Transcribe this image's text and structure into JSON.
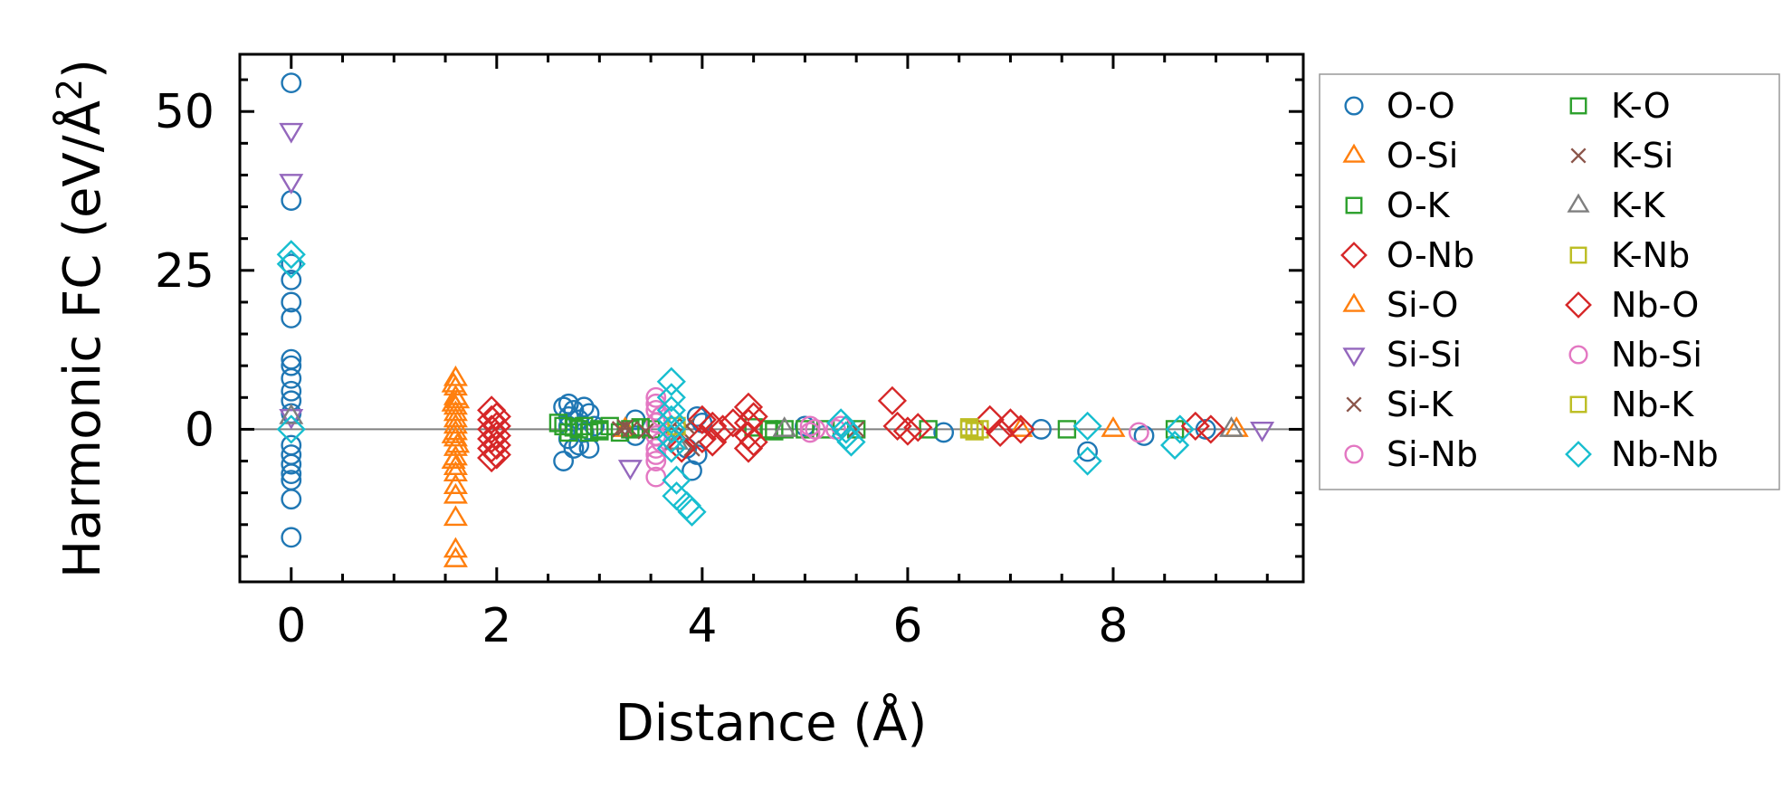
{
  "chart_data": {
    "type": "scatter",
    "title": "",
    "xlabel": "Distance (Å)",
    "ylabel": "Harmonic FC (eV/Å²)",
    "ylabel_parts": {
      "main": "Harmonic FC (eV/Å",
      "sup": "2",
      "close": ")"
    },
    "xlim": [
      -0.5,
      9.85
    ],
    "ylim": [
      -24,
      59
    ],
    "x_ticks": [
      0,
      2,
      4,
      6,
      8
    ],
    "y_ticks": [
      0,
      25,
      50
    ],
    "x_tick_labels": [
      "0",
      "2",
      "4",
      "6",
      "8"
    ],
    "y_tick_labels": [
      "0",
      "25",
      "50"
    ],
    "x_minor_step": 0.5,
    "y_minor_step": 5,
    "zero_line": true,
    "legend_position": "outside-right",
    "legend": [
      {
        "label": "O-O",
        "color": "#1f77b4",
        "marker": "circle"
      },
      {
        "label": "O-Si",
        "color": "#ff7f0e",
        "marker": "triangle-up"
      },
      {
        "label": "O-K",
        "color": "#2ca02c",
        "marker": "square"
      },
      {
        "label": "O-Nb",
        "color": "#d62728",
        "marker": "diamond"
      },
      {
        "label": "Si-O",
        "color": "#ff7f0e",
        "marker": "triangle-up"
      },
      {
        "label": "Si-Si",
        "color": "#9467bd",
        "marker": "triangle-down"
      },
      {
        "label": "Si-K",
        "color": "#8c564b",
        "marker": "x"
      },
      {
        "label": "Si-Nb",
        "color": "#e377c2",
        "marker": "circle"
      },
      {
        "label": "K-O",
        "color": "#2ca02c",
        "marker": "square"
      },
      {
        "label": "K-Si",
        "color": "#8c564b",
        "marker": "x"
      },
      {
        "label": "K-K",
        "color": "#7f7f7f",
        "marker": "triangle-up"
      },
      {
        "label": "K-Nb",
        "color": "#bcbd22",
        "marker": "square"
      },
      {
        "label": "Nb-O",
        "color": "#d62728",
        "marker": "diamond"
      },
      {
        "label": "Nb-Si",
        "color": "#e377c2",
        "marker": "circle"
      },
      {
        "label": "Nb-K",
        "color": "#bcbd22",
        "marker": "square"
      },
      {
        "label": "Nb-Nb",
        "color": "#17becf",
        "marker": "diamond"
      }
    ],
    "series": [
      {
        "name": "O-O",
        "color": "#1f77b4",
        "marker": "circle",
        "points": [
          [
            0,
            54.5
          ],
          [
            0,
            36
          ],
          [
            0,
            26
          ],
          [
            0,
            23.5
          ],
          [
            0,
            20
          ],
          [
            0,
            17.5
          ],
          [
            0,
            11
          ],
          [
            0,
            10
          ],
          [
            0,
            8
          ],
          [
            0,
            6
          ],
          [
            0,
            4.5
          ],
          [
            0,
            2.5
          ],
          [
            0,
            -2.5
          ],
          [
            0,
            -4
          ],
          [
            0,
            -5.5
          ],
          [
            0,
            -7
          ],
          [
            0,
            -8
          ],
          [
            0,
            -11
          ],
          [
            0,
            -17
          ],
          [
            2.65,
            3.5
          ],
          [
            2.65,
            -5
          ],
          [
            2.7,
            4
          ],
          [
            2.7,
            2
          ],
          [
            2.7,
            0.5
          ],
          [
            2.7,
            -1.5
          ],
          [
            2.75,
            3
          ],
          [
            2.75,
            -3
          ],
          [
            2.8,
            1.5
          ],
          [
            2.8,
            -2.5
          ],
          [
            2.85,
            3.5
          ],
          [
            2.85,
            -0.5
          ],
          [
            2.9,
            2.5
          ],
          [
            2.9,
            -3
          ],
          [
            2.95,
            0.5
          ],
          [
            3.35,
            1.5
          ],
          [
            3.35,
            -1
          ],
          [
            3.85,
            -3
          ],
          [
            3.9,
            -6.5
          ],
          [
            3.95,
            2
          ],
          [
            3.95,
            -4
          ],
          [
            4.0,
            1
          ],
          [
            5.0,
            0.5
          ],
          [
            6.35,
            -0.5
          ],
          [
            7.3,
            0
          ],
          [
            7.75,
            -3.5
          ],
          [
            8.3,
            -1
          ],
          [
            8.9,
            0
          ]
        ]
      },
      {
        "name": "O-Si",
        "color": "#ff7f0e",
        "marker": "triangle-up",
        "points": [
          [
            1.6,
            8
          ],
          [
            1.6,
            6.5
          ],
          [
            1.6,
            5
          ],
          [
            1.6,
            3.5
          ],
          [
            1.6,
            2.5
          ],
          [
            1.6,
            1.5
          ],
          [
            1.6,
            0.5
          ],
          [
            1.6,
            -0.5
          ],
          [
            1.6,
            -1.5
          ],
          [
            1.6,
            -3
          ],
          [
            1.6,
            -4.5
          ],
          [
            1.6,
            -6
          ],
          [
            1.6,
            -7
          ],
          [
            1.6,
            -9
          ],
          [
            1.6,
            -10.5
          ],
          [
            1.6,
            -14
          ],
          [
            1.6,
            -19
          ],
          [
            1.6,
            -20.5
          ],
          [
            1.62,
            4.5
          ],
          [
            1.62,
            -2.5
          ],
          [
            3.25,
            0
          ],
          [
            7.1,
            0
          ],
          [
            8.0,
            0
          ],
          [
            9.2,
            0
          ]
        ]
      },
      {
        "name": "O-K",
        "color": "#2ca02c",
        "marker": "square",
        "points": [
          [
            2.6,
            1
          ],
          [
            2.65,
            0.5
          ],
          [
            2.7,
            -0.5
          ],
          [
            2.8,
            0
          ],
          [
            2.85,
            0.5
          ],
          [
            2.9,
            -0.5
          ],
          [
            3.0,
            0
          ],
          [
            3.1,
            0.5
          ],
          [
            3.2,
            -0.5
          ],
          [
            3.3,
            0
          ],
          [
            3.5,
            0
          ],
          [
            4.5,
            0.3
          ],
          [
            4.65,
            0
          ],
          [
            4.8,
            0
          ],
          [
            5.0,
            0
          ],
          [
            5.2,
            0
          ],
          [
            5.5,
            0
          ],
          [
            7.55,
            0
          ]
        ]
      },
      {
        "name": "O-Nb",
        "color": "#d62728",
        "marker": "diamond",
        "points": [
          [
            1.95,
            3
          ],
          [
            1.95,
            1.5
          ],
          [
            1.95,
            0
          ],
          [
            1.95,
            -1.5
          ],
          [
            1.95,
            -3
          ],
          [
            1.95,
            -4.5
          ],
          [
            2.0,
            2
          ],
          [
            2.0,
            0.5
          ],
          [
            2.0,
            -1
          ],
          [
            2.0,
            -2.5
          ],
          [
            2.0,
            -4
          ],
          [
            4.0,
            1.5
          ],
          [
            4.0,
            -1.5
          ],
          [
            4.1,
            0.5
          ],
          [
            4.1,
            -2
          ],
          [
            4.45,
            3.5
          ],
          [
            4.45,
            1
          ],
          [
            4.45,
            -1
          ],
          [
            4.45,
            -3
          ],
          [
            4.5,
            2
          ],
          [
            4.5,
            -2
          ]
        ]
      },
      {
        "name": "Si-O",
        "color": "#ff7f0e",
        "marker": "triangle-up",
        "points": [
          [
            1.58,
            7
          ],
          [
            1.58,
            4
          ],
          [
            1.58,
            -1
          ],
          [
            1.58,
            -5
          ]
        ]
      },
      {
        "name": "Si-Si",
        "color": "#9467bd",
        "marker": "triangle-down",
        "points": [
          [
            0,
            47
          ],
          [
            0,
            39
          ],
          [
            0,
            2
          ],
          [
            3.3,
            -6
          ],
          [
            9.45,
            0
          ]
        ]
      },
      {
        "name": "Si-K",
        "color": "#8c564b",
        "marker": "x",
        "points": [
          [
            3.2,
            0
          ],
          [
            3.3,
            0
          ],
          [
            3.7,
            0.3
          ],
          [
            3.8,
            -0.3
          ],
          [
            5.5,
            0
          ]
        ]
      },
      {
        "name": "Si-Nb",
        "color": "#e377c2",
        "marker": "circle",
        "points": [
          [
            3.55,
            5
          ],
          [
            3.55,
            3
          ],
          [
            3.55,
            1
          ],
          [
            3.55,
            -1
          ],
          [
            3.55,
            -3
          ],
          [
            3.55,
            -5
          ],
          [
            3.55,
            -7.5
          ],
          [
            3.6,
            2
          ],
          [
            3.6,
            -2
          ],
          [
            5.05,
            0.5
          ],
          [
            5.05,
            -0.5
          ],
          [
            5.3,
            0
          ],
          [
            8.25,
            -0.5
          ]
        ]
      },
      {
        "name": "K-O",
        "color": "#2ca02c",
        "marker": "square",
        "points": [
          [
            2.75,
            0.3
          ],
          [
            3.0,
            -0.3
          ],
          [
            3.4,
            0.3
          ],
          [
            4.7,
            -0.3
          ],
          [
            6.2,
            0
          ],
          [
            8.6,
            0
          ]
        ]
      },
      {
        "name": "K-Si",
        "color": "#8c564b",
        "marker": "x",
        "points": [
          [
            3.25,
            0.3
          ],
          [
            3.45,
            -0.3
          ],
          [
            3.85,
            0.5
          ],
          [
            3.9,
            -3
          ]
        ]
      },
      {
        "name": "K-K",
        "color": "#7f7f7f",
        "marker": "triangle-up",
        "points": [
          [
            0,
            2
          ],
          [
            3.75,
            -2
          ],
          [
            4.8,
            0
          ],
          [
            9.15,
            0
          ]
        ]
      },
      {
        "name": "K-Nb",
        "color": "#bcbd22",
        "marker": "square",
        "points": [
          [
            3.75,
            0.5
          ],
          [
            6.6,
            0
          ],
          [
            6.7,
            0
          ]
        ]
      },
      {
        "name": "Nb-O",
        "color": "#d62728",
        "marker": "diamond",
        "points": [
          [
            3.8,
            -3
          ],
          [
            4.2,
            0
          ],
          [
            4.3,
            1
          ],
          [
            5.85,
            4.5
          ],
          [
            5.9,
            0.5
          ],
          [
            6.0,
            -0.3
          ],
          [
            6.1,
            0.3
          ],
          [
            6.8,
            1.5
          ],
          [
            6.9,
            -0.5
          ],
          [
            7.0,
            1
          ],
          [
            7.1,
            0
          ],
          [
            8.8,
            0.5
          ],
          [
            8.95,
            0
          ]
        ]
      },
      {
        "name": "Nb-Si",
        "color": "#e377c2",
        "marker": "circle",
        "points": [
          [
            3.55,
            4
          ],
          [
            3.55,
            -4
          ],
          [
            5.1,
            0
          ],
          [
            5.35,
            0.5
          ]
        ]
      },
      {
        "name": "Nb-K",
        "color": "#bcbd22",
        "marker": "square",
        "points": [
          [
            6.6,
            0.3
          ],
          [
            6.65,
            -0.3
          ]
        ]
      },
      {
        "name": "Nb-Nb",
        "color": "#17becf",
        "marker": "diamond",
        "points": [
          [
            0,
            27.5
          ],
          [
            0,
            26
          ],
          [
            0,
            0
          ],
          [
            3.7,
            7.5
          ],
          [
            3.7,
            5
          ],
          [
            3.7,
            3
          ],
          [
            3.7,
            1.5
          ],
          [
            3.7,
            0
          ],
          [
            3.7,
            -1.5
          ],
          [
            3.7,
            -3
          ],
          [
            3.75,
            -8
          ],
          [
            3.75,
            -10.5
          ],
          [
            3.85,
            -12
          ],
          [
            3.9,
            -13
          ],
          [
            5.35,
            1
          ],
          [
            5.4,
            0
          ],
          [
            5.4,
            -1
          ],
          [
            5.45,
            -2
          ],
          [
            7.75,
            0.5
          ],
          [
            7.75,
            -5
          ],
          [
            8.6,
            -2.5
          ],
          [
            8.65,
            0
          ]
        ]
      }
    ]
  }
}
